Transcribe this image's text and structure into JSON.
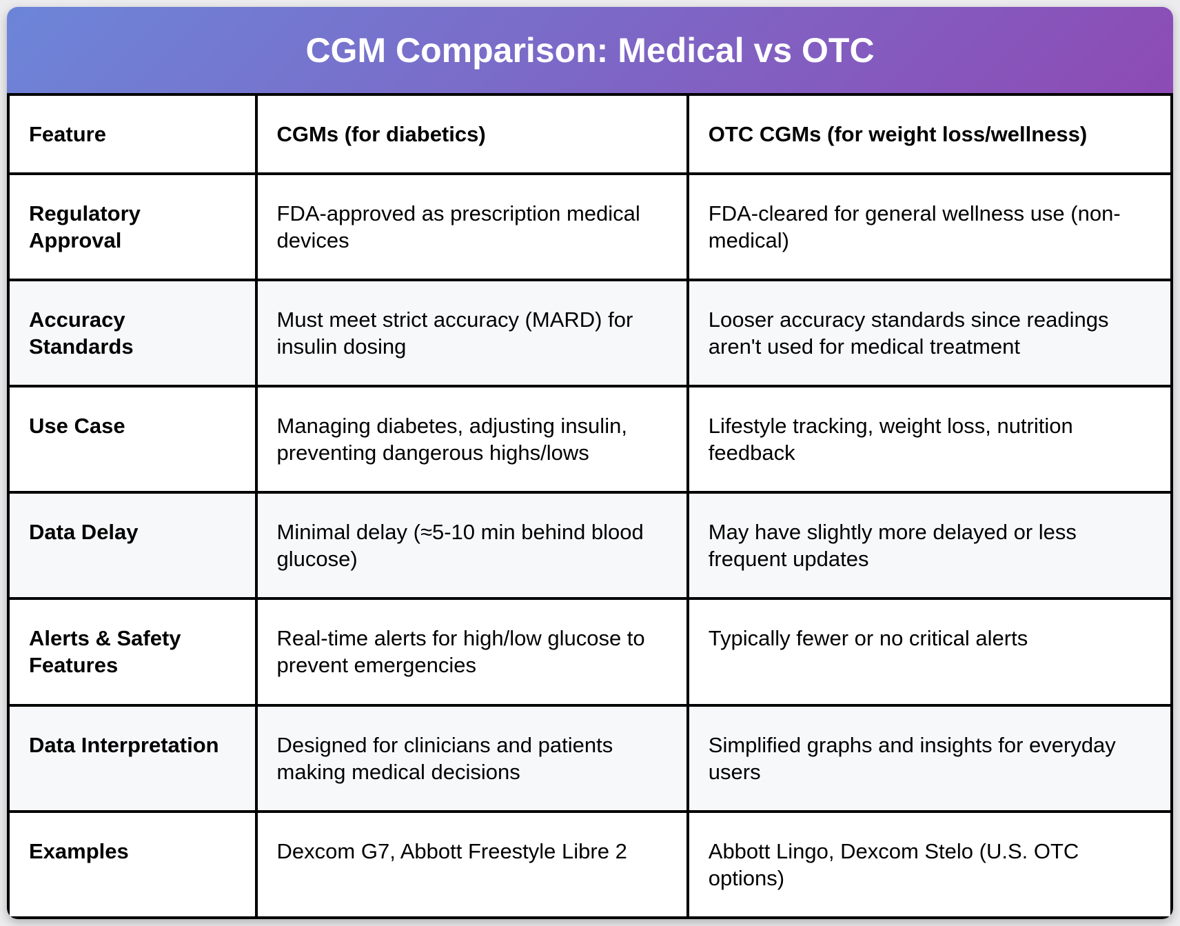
{
  "page": {
    "background": "#ececee"
  },
  "header": {
    "title": "CGM Comparison: Medical vs OTC",
    "gradient_from": "#6c85d8",
    "gradient_to": "#8d4bb5",
    "title_color": "#ffffff"
  },
  "table": {
    "border_color": "#000000",
    "alt_row_bg": "#f7f8fa",
    "columns": [
      "Feature",
      "CGMs (for diabetics)",
      "OTC CGMs (for weight loss/wellness)"
    ],
    "rows": [
      {
        "feature": "Regulatory Approval",
        "medical": "FDA-approved as prescription medical devices",
        "otc": "FDA-cleared for general wellness use (non-medical)"
      },
      {
        "feature": "Accuracy Standards",
        "medical": "Must meet strict accuracy (MARD) for insulin dosing",
        "otc": "Looser accuracy standards since readings aren't used for medical treatment"
      },
      {
        "feature": "Use Case",
        "medical": "Managing diabetes, adjusting insulin, preventing dangerous highs/lows",
        "otc": "Lifestyle tracking, weight loss, nutrition feedback"
      },
      {
        "feature": "Data Delay",
        "medical": "Minimal delay (≈5-10 min behind blood glucose)",
        "otc": "May have slightly more delayed or less frequent updates"
      },
      {
        "feature": "Alerts & Safety Features",
        "medical": "Real-time alerts for high/low glucose to prevent emergencies",
        "otc": "Typically fewer or no critical alerts"
      },
      {
        "feature": "Data Interpretation",
        "medical": "Designed for clinicians and patients making medical decisions",
        "otc": "Simplified graphs and insights for everyday users"
      },
      {
        "feature": "Examples",
        "medical": "Dexcom G7, Abbott Freestyle Libre 2",
        "otc": "Abbott Lingo, Dexcom Stelo (U.S. OTC options)"
      }
    ]
  }
}
